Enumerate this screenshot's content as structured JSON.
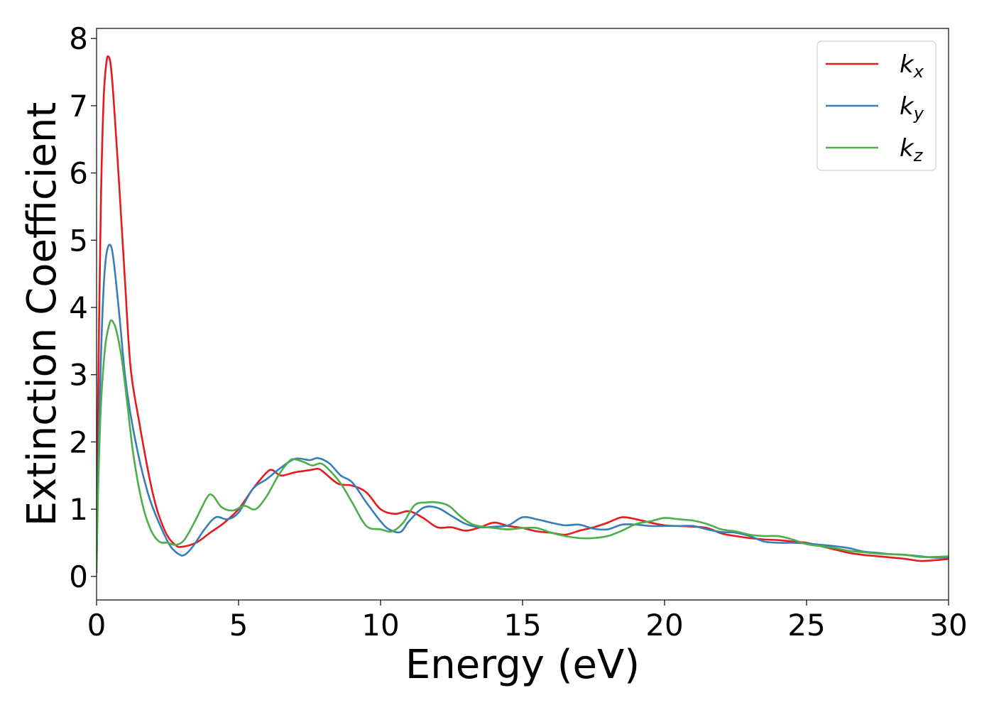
{
  "chart_data": {
    "type": "line",
    "title": "",
    "xlabel": "Energy (eV)",
    "ylabel": "Extinction Coefficient",
    "xlim": [
      0,
      30
    ],
    "ylim": [
      -0.35,
      8.15
    ],
    "xticks": [
      "0",
      "5",
      "10",
      "15",
      "20",
      "25",
      "30"
    ],
    "yticks": [
      "0",
      "1",
      "2",
      "3",
      "4",
      "5",
      "6",
      "7",
      "8"
    ],
    "grid": false,
    "legend_position": "top-right",
    "series": [
      {
        "name": "k_x",
        "legend_base": "k",
        "legend_sub": "x",
        "color": "#e41a1c",
        "x": [
          0,
          0.05,
          0.15,
          0.25,
          0.35,
          0.42,
          0.5,
          0.6,
          0.8,
          1.0,
          1.2,
          1.5,
          1.8,
          2.0,
          2.2,
          2.5,
          2.8,
          3.0,
          3.5,
          4.0,
          4.5,
          5.0,
          5.5,
          6.0,
          6.2,
          6.5,
          7.0,
          7.5,
          7.8,
          8.0,
          8.5,
          9.0,
          9.5,
          10.0,
          10.5,
          11.0,
          11.5,
          12.0,
          12.5,
          13.0,
          13.5,
          14.0,
          14.5,
          15.0,
          15.5,
          16.0,
          16.5,
          17.0,
          17.5,
          18.0,
          18.5,
          19.0,
          19.5,
          20.0,
          20.5,
          21.0,
          21.5,
          22.0,
          22.5,
          23.0,
          23.5,
          24.0,
          24.5,
          25.0,
          25.5,
          26.0,
          26.5,
          27.0,
          27.5,
          28.0,
          28.5,
          29.0,
          29.5,
          30.0
        ],
        "y": [
          0.3,
          2.5,
          5.5,
          7.1,
          7.65,
          7.73,
          7.6,
          7.1,
          5.8,
          4.4,
          3.1,
          2.3,
          1.6,
          1.2,
          0.9,
          0.6,
          0.46,
          0.44,
          0.5,
          0.65,
          0.8,
          1.0,
          1.3,
          1.55,
          1.58,
          1.5,
          1.55,
          1.58,
          1.6,
          1.55,
          1.38,
          1.35,
          1.25,
          1.0,
          0.93,
          0.97,
          0.87,
          0.73,
          0.73,
          0.68,
          0.73,
          0.8,
          0.75,
          0.72,
          0.67,
          0.65,
          0.62,
          0.68,
          0.73,
          0.8,
          0.88,
          0.85,
          0.8,
          0.76,
          0.75,
          0.74,
          0.72,
          0.64,
          0.6,
          0.57,
          0.55,
          0.54,
          0.52,
          0.5,
          0.45,
          0.4,
          0.35,
          0.32,
          0.3,
          0.28,
          0.26,
          0.23,
          0.24,
          0.26
        ]
      },
      {
        "name": "k_y",
        "legend_base": "k",
        "legend_sub": "y",
        "color": "#377eb8",
        "x": [
          0,
          0.05,
          0.15,
          0.25,
          0.35,
          0.48,
          0.6,
          0.8,
          1.0,
          1.2,
          1.5,
          1.8,
          2.0,
          2.3,
          2.6,
          2.9,
          3.1,
          3.4,
          3.8,
          4.2,
          4.6,
          5.0,
          5.5,
          6.0,
          6.5,
          7.0,
          7.5,
          7.8,
          8.2,
          8.6,
          9.0,
          9.5,
          10.0,
          10.3,
          10.7,
          11.0,
          11.5,
          12.0,
          12.5,
          13.0,
          13.5,
          14.0,
          14.5,
          15.0,
          15.5,
          16.0,
          16.5,
          17.0,
          17.5,
          18.0,
          18.5,
          19.0,
          19.5,
          20.0,
          20.5,
          21.0,
          21.5,
          22.0,
          22.5,
          23.0,
          23.5,
          24.0,
          24.5,
          25.0,
          25.5,
          26.0,
          26.5,
          27.0,
          27.5,
          28.0,
          28.5,
          29.0,
          29.5,
          30.0
        ],
        "y": [
          0.05,
          1.5,
          3.2,
          4.3,
          4.8,
          4.93,
          4.7,
          3.9,
          3.0,
          2.4,
          1.75,
          1.25,
          1.0,
          0.7,
          0.45,
          0.33,
          0.32,
          0.45,
          0.7,
          0.88,
          0.85,
          0.95,
          1.3,
          1.45,
          1.62,
          1.75,
          1.73,
          1.76,
          1.68,
          1.5,
          1.4,
          1.1,
          0.82,
          0.7,
          0.66,
          0.82,
          1.02,
          1.02,
          0.9,
          0.78,
          0.73,
          0.74,
          0.76,
          0.88,
          0.85,
          0.8,
          0.76,
          0.77,
          0.71,
          0.7,
          0.77,
          0.77,
          0.75,
          0.75,
          0.75,
          0.75,
          0.7,
          0.66,
          0.65,
          0.6,
          0.52,
          0.5,
          0.5,
          0.49,
          0.47,
          0.45,
          0.42,
          0.37,
          0.35,
          0.33,
          0.32,
          0.3,
          0.28,
          0.28
        ]
      },
      {
        "name": "k_z",
        "legend_base": "k",
        "legend_sub": "z",
        "color": "#4daf4a",
        "x": [
          0,
          0.05,
          0.15,
          0.3,
          0.45,
          0.55,
          0.7,
          0.9,
          1.1,
          1.3,
          1.6,
          1.9,
          2.2,
          2.5,
          2.8,
          3.1,
          3.5,
          3.9,
          4.1,
          4.4,
          4.8,
          5.2,
          5.6,
          6.0,
          6.4,
          6.8,
          7.0,
          7.3,
          7.6,
          7.9,
          8.2,
          8.6,
          9.0,
          9.5,
          10.0,
          10.4,
          10.8,
          11.2,
          11.6,
          12.0,
          12.4,
          12.8,
          13.2,
          13.6,
          14.0,
          14.5,
          15.0,
          15.5,
          16.0,
          16.5,
          17.0,
          17.5,
          18.0,
          18.5,
          19.0,
          19.5,
          20.0,
          20.5,
          21.0,
          21.5,
          22.0,
          22.5,
          23.0,
          23.5,
          24.0,
          24.5,
          25.0,
          25.5,
          26.0,
          26.5,
          27.0,
          27.5,
          28.0,
          28.5,
          29.0,
          29.5,
          30.0
        ],
        "y": [
          0.1,
          1.2,
          2.5,
          3.4,
          3.75,
          3.8,
          3.65,
          3.2,
          2.5,
          1.8,
          1.1,
          0.7,
          0.52,
          0.5,
          0.47,
          0.55,
          0.85,
          1.18,
          1.2,
          1.03,
          0.98,
          1.05,
          1.0,
          1.2,
          1.5,
          1.72,
          1.74,
          1.7,
          1.65,
          1.68,
          1.58,
          1.38,
          1.1,
          0.75,
          0.7,
          0.67,
          0.8,
          1.06,
          1.1,
          1.1,
          1.05,
          0.9,
          0.78,
          0.74,
          0.72,
          0.7,
          0.72,
          0.72,
          0.65,
          0.6,
          0.57,
          0.57,
          0.6,
          0.68,
          0.78,
          0.82,
          0.87,
          0.85,
          0.83,
          0.78,
          0.7,
          0.67,
          0.62,
          0.6,
          0.6,
          0.55,
          0.48,
          0.45,
          0.42,
          0.38,
          0.36,
          0.34,
          0.33,
          0.32,
          0.29,
          0.29,
          0.3
        ]
      }
    ]
  }
}
